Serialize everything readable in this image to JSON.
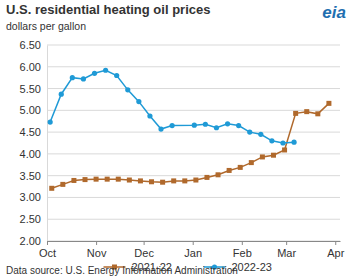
{
  "chart_data": {
    "type": "line",
    "title": "U.S. residential heating oil prices",
    "subtitle": "dollars per gallon",
    "source": "Data source: U.S. Energy Information Administration",
    "logo_text": "eia",
    "xlim": [
      0,
      185
    ],
    "xticks": [
      {
        "value": 0,
        "label": "Oct"
      },
      {
        "value": 31,
        "label": "Nov"
      },
      {
        "value": 61,
        "label": "Dec"
      },
      {
        "value": 92,
        "label": "Jan"
      },
      {
        "value": 123,
        "label": "Feb"
      },
      {
        "value": 151,
        "label": "Mar"
      },
      {
        "value": 182,
        "label": "Apr"
      }
    ],
    "ylim": [
      2,
      6.5
    ],
    "yticks": [
      {
        "value": 2,
        "label": "2.00"
      },
      {
        "value": 2.5,
        "label": "2.50"
      },
      {
        "value": 3,
        "label": "3.00"
      },
      {
        "value": 3.5,
        "label": "3.50"
      },
      {
        "value": 4,
        "label": "4.00"
      },
      {
        "value": 4.5,
        "label": "4.50"
      },
      {
        "value": 5,
        "label": "5.00"
      },
      {
        "value": 5.5,
        "label": "5.50"
      },
      {
        "value": 6,
        "label": "6.00"
      },
      {
        "value": 6.5,
        "label": "6.50"
      }
    ],
    "grid": true,
    "legend": "bottom",
    "series": [
      {
        "name": "2021-22",
        "color": "#b0692c",
        "marker": "square",
        "x": [
          3,
          10,
          17,
          24,
          31,
          38,
          45,
          52,
          59,
          66,
          73,
          80,
          87,
          94,
          101,
          108,
          115,
          122,
          129,
          136,
          143,
          150,
          157,
          164,
          171,
          178
        ],
        "values": [
          3.21,
          3.3,
          3.39,
          3.41,
          3.42,
          3.42,
          3.42,
          3.4,
          3.38,
          3.36,
          3.35,
          3.38,
          3.38,
          3.4,
          3.46,
          3.52,
          3.62,
          3.69,
          3.8,
          3.93,
          3.97,
          4.09,
          4.93,
          4.97,
          4.92,
          5.16
        ]
      },
      {
        "name": "2022-23",
        "color": "#1f9ad6",
        "marker": "circle",
        "x": [
          2,
          9,
          16,
          23,
          30,
          37,
          44,
          51,
          58,
          65,
          72,
          79,
          93,
          100,
          107,
          114,
          121,
          128,
          135,
          142,
          149,
          156
        ],
        "values": [
          4.73,
          5.37,
          5.75,
          5.72,
          5.85,
          5.92,
          5.8,
          5.47,
          5.2,
          4.87,
          4.57,
          4.65,
          4.66,
          4.68,
          4.6,
          4.69,
          4.65,
          4.5,
          4.45,
          4.3,
          4.25,
          4.27
        ]
      }
    ]
  }
}
